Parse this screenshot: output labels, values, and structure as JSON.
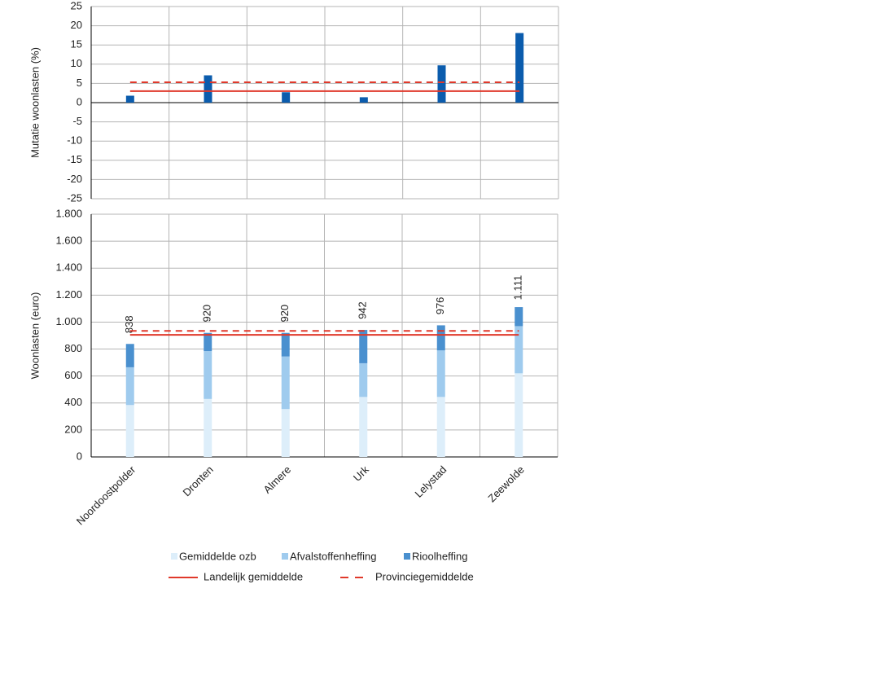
{
  "chart_data": [
    {
      "type": "bar",
      "ylabel": "Mutatie woonlasten  (%)",
      "values": [
        1.8,
        7.1,
        2.7,
        1.4,
        9.7,
        18.1
      ],
      "color": "#0b5cad",
      "ylim": [
        -25,
        25
      ],
      "yticks": [
        -25,
        -20,
        -15,
        -10,
        -5,
        0,
        5,
        10,
        15,
        20,
        25
      ],
      "grid": true,
      "lines": [
        {
          "value": 3.0,
          "color": "#e0392b",
          "dash": false
        },
        {
          "value": 5.3,
          "color": "#e0392b",
          "dash": true
        }
      ]
    },
    {
      "type": "stacked_bar",
      "ylabel": "Woonlasten  (euro)",
      "categories": [
        "Noordoostpolder",
        "Dronten",
        "Almere",
        "Urk",
        "Lelystad",
        "Zeewolde"
      ],
      "series": [
        {
          "name": "Gemiddelde ozb",
          "color": "#ddeefa",
          "values": [
            385,
            430,
            355,
            445,
            445,
            620
          ]
        },
        {
          "name": "Afvalstoffenheffing",
          "color": "#9fcbee",
          "values": [
            280,
            355,
            390,
            250,
            345,
            350
          ]
        },
        {
          "name": "Rioolheffing",
          "color": "#4a90cf",
          "values": [
            173,
            135,
            175,
            247,
            186,
            141
          ]
        }
      ],
      "totals": {
        "values": [
          838,
          920,
          920,
          942,
          976,
          1111
        ],
        "value_labels": [
          "838",
          "920",
          "920",
          "942",
          "976",
          "1.111"
        ]
      },
      "lines": [
        {
          "name": "Landelijk gemiddelde",
          "value": 905,
          "color": "#e0392b",
          "dash": false
        },
        {
          "name": "Provinciegemiddelde",
          "value": 935,
          "color": "#e0392b",
          "dash": true
        }
      ],
      "ylim": [
        0,
        1800
      ],
      "yticks": [
        0,
        200,
        400,
        600,
        800,
        {
          "value": 1000,
          "label": "1.000"
        },
        {
          "value": 1200,
          "label": "1.200"
        },
        {
          "value": 1400,
          "label": "1.400"
        },
        {
          "value": 1600,
          "label": "1.600"
        },
        {
          "value": 1800,
          "label": "1.800"
        }
      ],
      "grid": true
    }
  ]
}
